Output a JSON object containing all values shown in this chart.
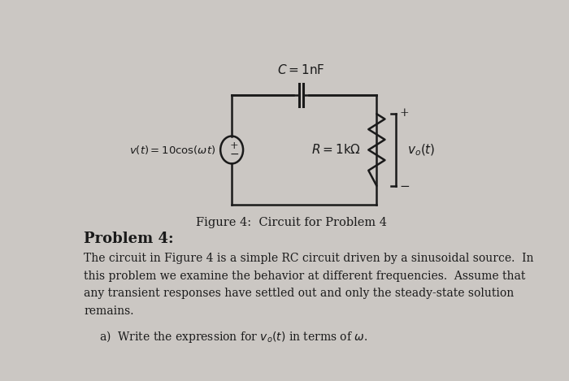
{
  "bg_color": "#cbc7c3",
  "circuit_bg": "#cbc7c3",
  "title_caption": "Figure 4:  Circuit for Problem 4",
  "problem_header": "Problem 4:",
  "body_text_lines": [
    "The circuit in Figure 4 is a simple RC circuit driven by a sinusoidal source.  In",
    "this problem we examine the behavior at different frequencies.  Assume that",
    "any transient responses have settled out and only the steady-state solution",
    "remains."
  ],
  "subpart_a": "a)  Write the expression for $v_o(t)$ in terms of $\\omega$.",
  "cap_label": "$C = 1\\mathrm{nF}$",
  "res_label": "$R = 1\\mathrm{k}\\Omega$",
  "src_label": "$v(t) = 10\\cos(\\omega t)$",
  "vo_label": "$v_o(t)$"
}
